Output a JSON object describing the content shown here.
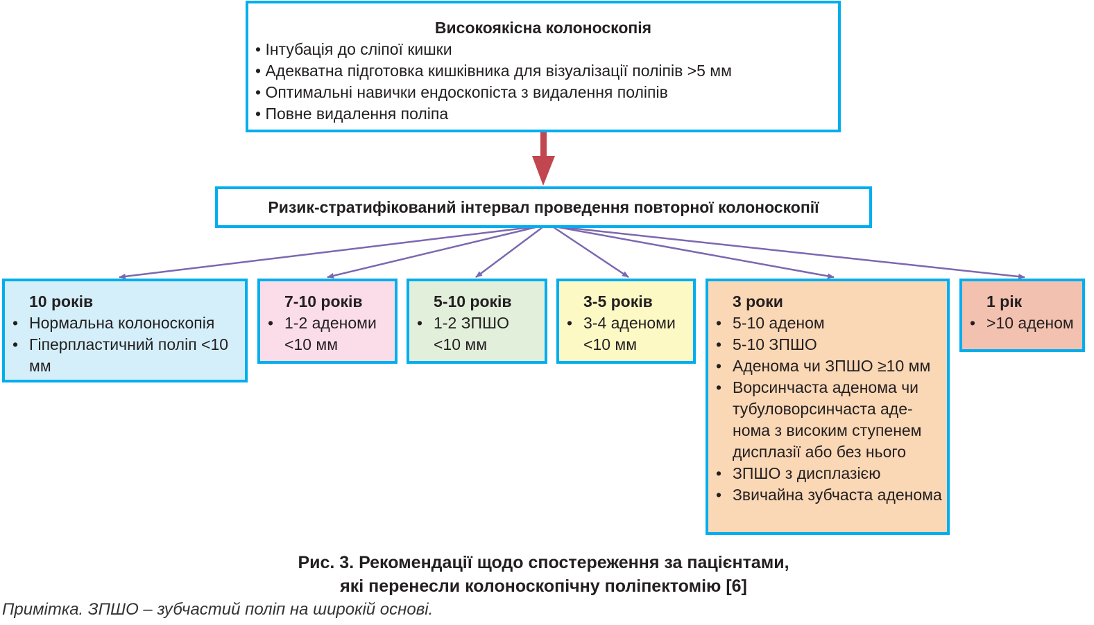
{
  "colors": {
    "border": "#00aeef",
    "main_arrow": "#c1464f",
    "branch_arrow": "#7b68b0"
  },
  "top": {
    "title": "Високоякісна колоноскопія",
    "items": [
      "Інтубація до сліпої кишки",
      "Адекватна підготовка кишківника для візуалізації поліпів >5 мм",
      "Оптимальні навички ендоскопіста з видалення поліпів",
      "Повне видалення поліпа"
    ]
  },
  "middle": {
    "title": "Ризик-стратифікований інтервал проведення повторної колоноскопії"
  },
  "cards": [
    {
      "title": "10 років",
      "items": [
        "Нормальна колоноскопія",
        "Гіперпластичний поліп <10 мм"
      ],
      "bg": "#d4effa"
    },
    {
      "title": "7-10 років",
      "items": [
        "1-2 аденоми <10 мм"
      ],
      "bg": "#fbdde9"
    },
    {
      "title": "5-10 років",
      "items": [
        "1-2 ЗПШО <10 мм"
      ],
      "bg": "#e2efdb"
    },
    {
      "title": "3-5 років",
      "items": [
        "3-4 аденоми <10 мм"
      ],
      "bg": "#fdf9c4"
    },
    {
      "title": "3 роки",
      "items": [
        "5-10 аденом",
        "5-10 ЗПШО",
        "Аденома чи ЗПШО ≥10 мм",
        "Ворсинчаста аденома чи тубуловорсинчаста аде­нома з високим ступенем дисплазії або без нього",
        "ЗПШО з дисплазією",
        "Звичайна зубчаста аде­нома"
      ],
      "bg": "#fad7b5"
    },
    {
      "title": "1 рік",
      "items": [
        ">10 аденом"
      ],
      "bg": "#f2c1b0"
    }
  ],
  "caption": {
    "line1": "Рис. 3. Рекомендації щодо спостереження за пацієнтами,",
    "line2": "які перенесли колоноскопічну поліпектомію [6]"
  },
  "note": "Примітка. ЗПШО – зубчастий поліп на широкій основі."
}
